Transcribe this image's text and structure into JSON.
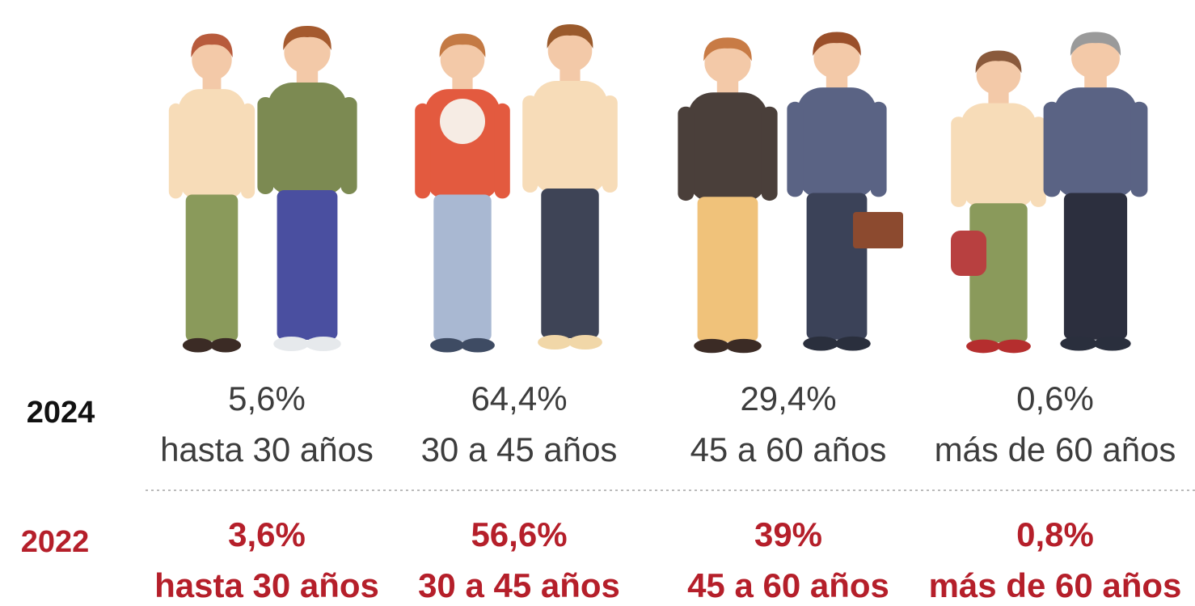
{
  "rows": [
    {
      "year": "2024",
      "items": [
        {
          "value": "5,6%",
          "label": "hasta 30 años"
        },
        {
          "value": "64,4%",
          "label": "30 a 45 años"
        },
        {
          "value": "29,4%",
          "label": "45 a 60 años"
        },
        {
          "value": "0,6%",
          "label": "más de 60 años"
        }
      ]
    },
    {
      "year": "2022",
      "items": [
        {
          "value": "3,6%",
          "label": "hasta 30 años"
        },
        {
          "value": "56,6%",
          "label": "30 a 45 años"
        },
        {
          "value": "39%",
          "label": "45 a 60 años"
        },
        {
          "value": "0,8%",
          "label": "más de 60 años"
        }
      ]
    }
  ]
}
